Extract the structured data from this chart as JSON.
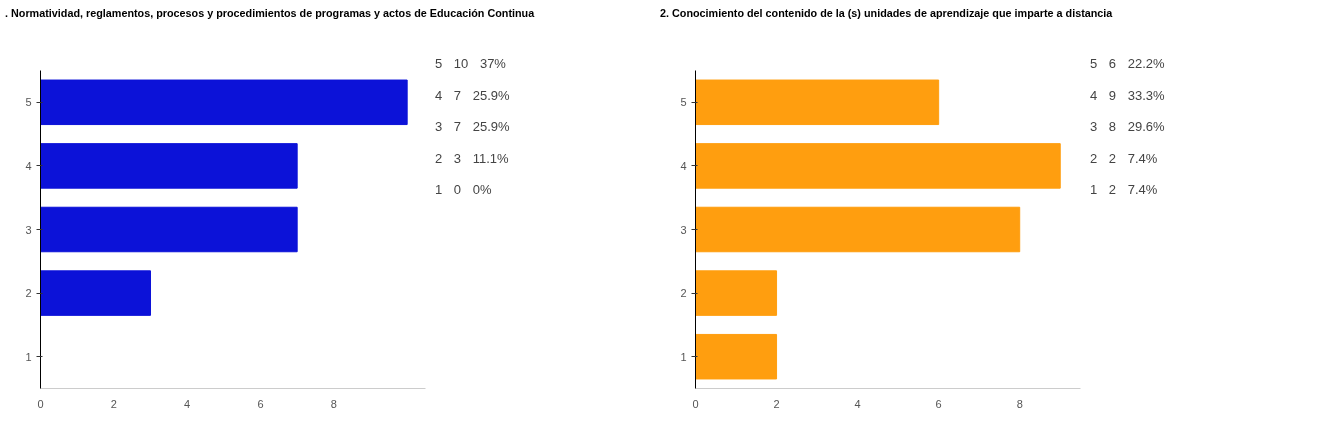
{
  "chart_data": [
    {
      "type": "bar",
      "orientation": "horizontal",
      "title": ". Normatividad, reglamentos, procesos y procedimientos de programas y actos de Educación Continua",
      "categories": [
        "5",
        "4",
        "3",
        "2",
        "1"
      ],
      "values": [
        10,
        7,
        7,
        3,
        0
      ],
      "color": "#0c12d8",
      "xlim": [
        0,
        10.5
      ],
      "xticks": [
        0,
        2,
        4,
        6,
        8
      ],
      "grid": false,
      "annotations": [
        "5 10 37%",
        "4 7 25.9%",
        "3 7 25.9%",
        "2 3 11.1%",
        "1 0 0%"
      ]
    },
    {
      "type": "bar",
      "orientation": "horizontal",
      "title": "2. Conocimiento del contenido de la (s) unidades de aprendizaje que imparte a distancia",
      "categories": [
        "5",
        "4",
        "3",
        "2",
        "1"
      ],
      "values": [
        6,
        9,
        8,
        2,
        2
      ],
      "color": "#ff9e0f",
      "xlim": [
        0,
        9.5
      ],
      "xticks": [
        0,
        2,
        4,
        6,
        8
      ],
      "grid": false,
      "annotations": [
        "5 6 22.2%",
        "4 9 33.3%",
        "3 8 29.6%",
        "2 2 7.4%",
        "1 2 7.4%"
      ]
    }
  ]
}
